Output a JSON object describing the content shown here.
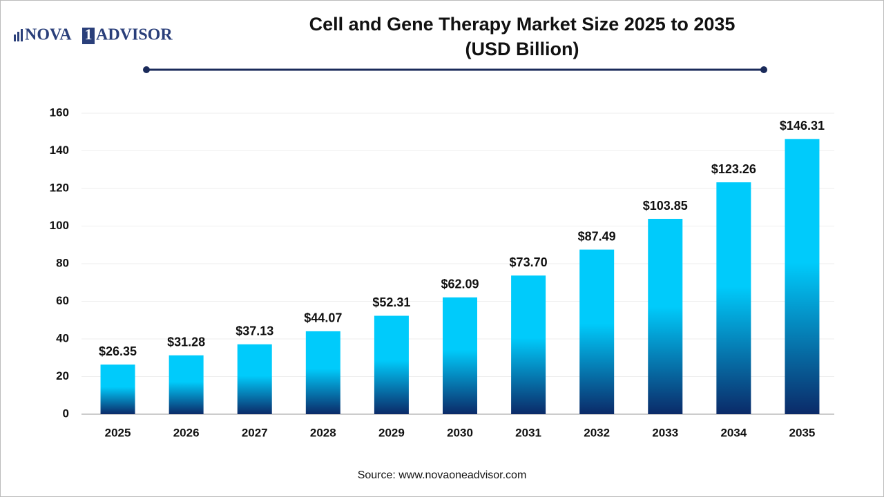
{
  "logo": [
    "NOVA",
    "1",
    "ADVISOR"
  ],
  "chart_data": {
    "type": "bar",
    "title": "Cell and Gene Therapy Market Size 2025 to 2035",
    "subtitle": "(USD Billion)",
    "source": "Source: www.novaoneadvisor.com",
    "categories": [
      "2025",
      "2026",
      "2027",
      "2028",
      "2029",
      "2030",
      "2031",
      "2032",
      "2033",
      "2034",
      "2035"
    ],
    "values": [
      26.35,
      31.28,
      37.13,
      44.07,
      52.31,
      62.09,
      73.7,
      87.49,
      103.85,
      123.26,
      146.31
    ],
    "value_labels": [
      "$26.35",
      "$31.28",
      "$37.13",
      "$44.07",
      "$52.31",
      "$62.09",
      "$73.70",
      "$87.49",
      "$103.85",
      "$123.26",
      "$146.31"
    ],
    "colors": [
      "#00cbfb",
      "#0b2a68"
    ],
    "ylim": [
      0,
      160
    ],
    "yticks": [
      0,
      20,
      40,
      60,
      80,
      100,
      120,
      140,
      160
    ],
    "grid": true
  }
}
